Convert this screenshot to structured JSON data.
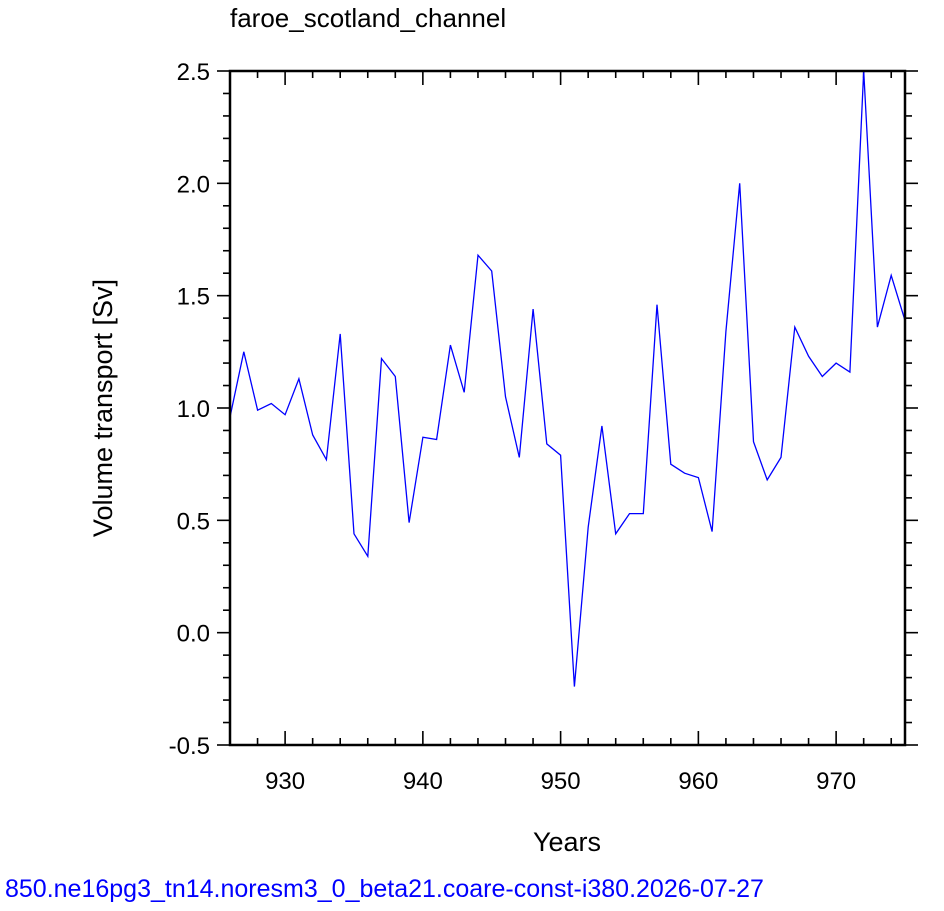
{
  "chart_data": {
    "type": "line",
    "title": "faroe_scotland_channel",
    "xlabel": "Years",
    "ylabel": "Volume transport [Sv]",
    "footer": "850.ne16pg3_tn14.noresm3_0_beta21.coare-const-i380.2026-07-27",
    "xlim": [
      926,
      975
    ],
    "ylim": [
      -0.5,
      2.5
    ],
    "x_ticks": [
      930,
      940,
      950,
      960,
      970
    ],
    "y_ticks": [
      -0.5,
      0.0,
      0.5,
      1.0,
      1.5,
      2.0,
      2.5
    ],
    "x_tick_labels": [
      "930",
      "940",
      "950",
      "960",
      "970"
    ],
    "y_tick_labels": [
      "-0.5",
      "0.0",
      "0.5",
      "1.0",
      "1.5",
      "2.0",
      "2.5"
    ],
    "grid": false,
    "series": [
      {
        "color": "#0000ff",
        "x": [
          926,
          927,
          928,
          929,
          930,
          931,
          932,
          933,
          934,
          935,
          936,
          937,
          938,
          939,
          940,
          941,
          942,
          943,
          944,
          945,
          946,
          947,
          948,
          949,
          950,
          951,
          952,
          953,
          954,
          955,
          956,
          957,
          958,
          959,
          960,
          961,
          962,
          963,
          964,
          965,
          966,
          967,
          968,
          969,
          970,
          971,
          972,
          973,
          974,
          975
        ],
        "values": [
          0.96,
          1.25,
          0.99,
          1.02,
          0.97,
          1.13,
          0.88,
          0.77,
          1.33,
          0.44,
          0.34,
          1.22,
          1.14,
          0.49,
          0.87,
          0.86,
          1.28,
          1.07,
          1.68,
          1.61,
          1.05,
          0.78,
          1.44,
          0.84,
          0.79,
          -0.24,
          0.47,
          0.92,
          0.44,
          0.53,
          0.53,
          1.46,
          0.75,
          0.71,
          0.69,
          0.45,
          1.34,
          2.0,
          0.85,
          0.68,
          0.78,
          1.36,
          1.23,
          1.14,
          1.2,
          1.16,
          2.5,
          1.36,
          1.59,
          1.39
        ]
      }
    ]
  }
}
